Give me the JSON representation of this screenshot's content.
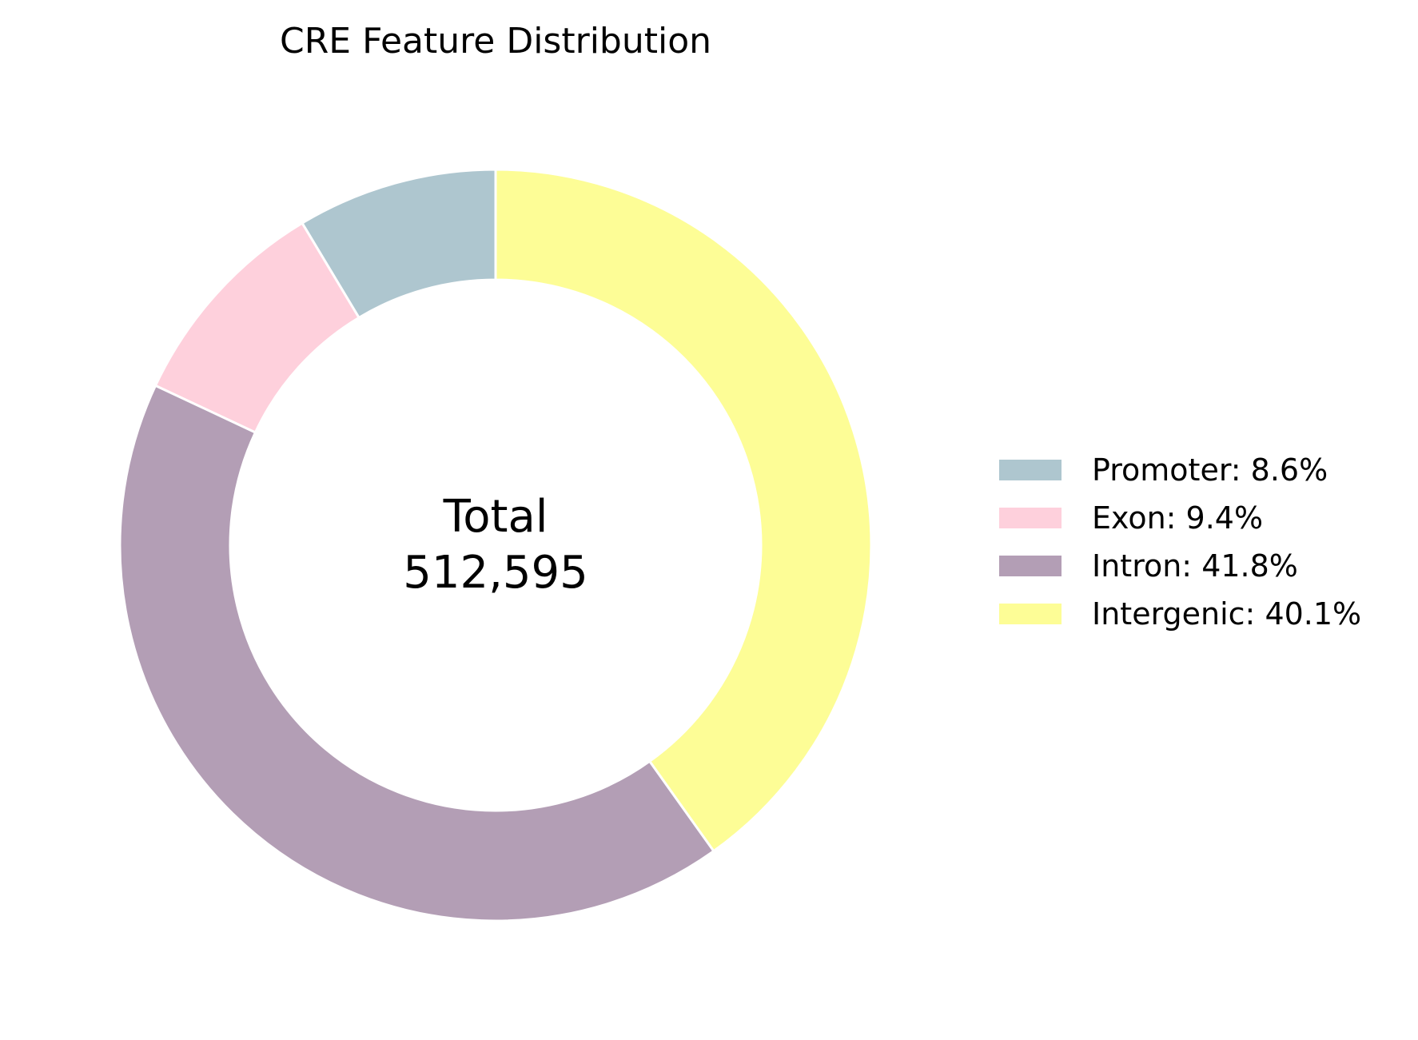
{
  "chart_data": {
    "type": "pie",
    "title": "CRE Feature Distribution",
    "center_label": {
      "line1": "Total",
      "line2": "512,595"
    },
    "total": 512595,
    "categories": [
      "Promoter",
      "Exon",
      "Intron",
      "Intergenic"
    ],
    "values": [
      8.6,
      9.4,
      41.8,
      40.1
    ],
    "colors": [
      "#aec6cf",
      "#fed0dc",
      "#b39eb5",
      "#fdfd96"
    ],
    "legend": {
      "placement": "right",
      "entries": [
        "Promoter: 8.6%",
        "Exon: 9.4%",
        "Intron: 41.8%",
        "Intergenic: 40.1%"
      ]
    },
    "start_angle_deg": 90,
    "direction": "counterclockwise",
    "donut": true
  }
}
